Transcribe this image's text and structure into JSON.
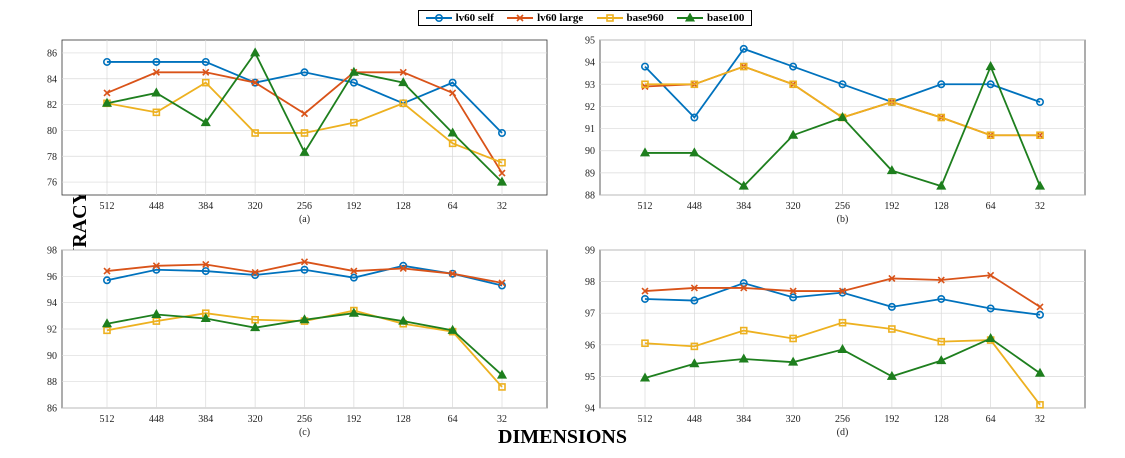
{
  "legend": [
    {
      "name": "lv60 self",
      "color": "#0072BD",
      "marker": "circle"
    },
    {
      "name": "lv60 large",
      "color": "#D95319",
      "marker": "x"
    },
    {
      "name": "base960",
      "color": "#EDB120",
      "marker": "square"
    },
    {
      "name": "base100",
      "color": "#1E7F1E",
      "marker": "triangle"
    }
  ],
  "global_labels": {
    "ylabel": "ACCURACY (%)",
    "xlabel": "DIMENSIONS"
  },
  "chart_data": [
    {
      "type": "line",
      "panel_label": "(a)",
      "categories": [
        "512",
        "448",
        "384",
        "320",
        "256",
        "192",
        "128",
        "64",
        "32"
      ],
      "ylim": [
        75,
        87
      ],
      "yticks": [
        76,
        78,
        80,
        82,
        84,
        86
      ],
      "grid": true,
      "series": [
        {
          "name": "lv60 self",
          "values": [
            85.3,
            85.3,
            85.3,
            83.7,
            84.5,
            83.7,
            82.1,
            83.7,
            79.8
          ]
        },
        {
          "name": "lv60 large",
          "values": [
            82.9,
            84.5,
            84.5,
            83.7,
            81.3,
            84.5,
            84.5,
            82.9,
            76.7
          ]
        },
        {
          "name": "base960",
          "values": [
            82.1,
            81.4,
            83.7,
            79.8,
            79.8,
            80.6,
            82.1,
            79.0,
            77.5
          ]
        },
        {
          "name": "base100",
          "values": [
            82.1,
            82.9,
            80.6,
            86.0,
            78.3,
            84.5,
            83.7,
            79.8,
            76.0
          ]
        }
      ]
    },
    {
      "type": "line",
      "panel_label": "(b)",
      "categories": [
        "512",
        "448",
        "384",
        "320",
        "256",
        "192",
        "128",
        "64",
        "32"
      ],
      "ylim": [
        88,
        95
      ],
      "yticks": [
        88,
        89,
        90,
        91,
        92,
        93,
        94,
        95
      ],
      "grid": true,
      "series": [
        {
          "name": "lv60 self",
          "values": [
            93.8,
            91.5,
            94.6,
            93.8,
            93.0,
            92.2,
            93.0,
            93.0,
            92.2
          ]
        },
        {
          "name": "lv60 large",
          "values": [
            92.9,
            93.0,
            93.8,
            93.0,
            91.5,
            92.2,
            91.5,
            90.7,
            90.7
          ]
        },
        {
          "name": "base960",
          "values": [
            93.0,
            93.0,
            93.8,
            93.0,
            91.5,
            92.2,
            91.5,
            90.7,
            90.7
          ]
        },
        {
          "name": "base100",
          "values": [
            89.9,
            89.9,
            88.4,
            90.7,
            91.5,
            89.1,
            88.4,
            93.8,
            88.4
          ]
        }
      ]
    },
    {
      "type": "line",
      "panel_label": "(c)",
      "categories": [
        "512",
        "448",
        "384",
        "320",
        "256",
        "192",
        "128",
        "64",
        "32"
      ],
      "ylim": [
        86,
        98
      ],
      "yticks": [
        86,
        88,
        90,
        92,
        94,
        96,
        98
      ],
      "grid": true,
      "series": [
        {
          "name": "lv60 self",
          "values": [
            95.7,
            96.5,
            96.4,
            96.1,
            96.5,
            95.9,
            96.8,
            96.2,
            95.3
          ]
        },
        {
          "name": "lv60 large",
          "values": [
            96.4,
            96.8,
            96.9,
            96.3,
            97.1,
            96.4,
            96.6,
            96.2,
            95.5
          ]
        },
        {
          "name": "base960",
          "values": [
            91.9,
            92.6,
            93.2,
            92.7,
            92.6,
            93.4,
            92.4,
            91.8,
            87.6
          ]
        },
        {
          "name": "base100",
          "values": [
            92.4,
            93.1,
            92.8,
            92.1,
            92.7,
            93.2,
            92.6,
            91.9,
            88.5
          ]
        }
      ]
    },
    {
      "type": "line",
      "panel_label": "(d)",
      "categories": [
        "512",
        "448",
        "384",
        "320",
        "256",
        "192",
        "128",
        "64",
        "32"
      ],
      "ylim": [
        94,
        99
      ],
      "yticks": [
        94,
        95,
        96,
        97,
        98,
        99
      ],
      "grid": true,
      "series": [
        {
          "name": "lv60 self",
          "values": [
            97.45,
            97.4,
            97.95,
            97.5,
            97.65,
            97.2,
            97.45,
            97.15,
            96.95
          ]
        },
        {
          "name": "lv60 large",
          "values": [
            97.7,
            97.8,
            97.8,
            97.7,
            97.7,
            98.1,
            98.05,
            98.2,
            97.2
          ]
        },
        {
          "name": "base960",
          "values": [
            96.05,
            95.95,
            96.45,
            96.2,
            96.7,
            96.5,
            96.1,
            96.15,
            94.1
          ]
        },
        {
          "name": "base100",
          "values": [
            94.95,
            95.4,
            95.55,
            95.45,
            95.85,
            95.0,
            95.5,
            96.2,
            95.1
          ]
        }
      ]
    }
  ]
}
